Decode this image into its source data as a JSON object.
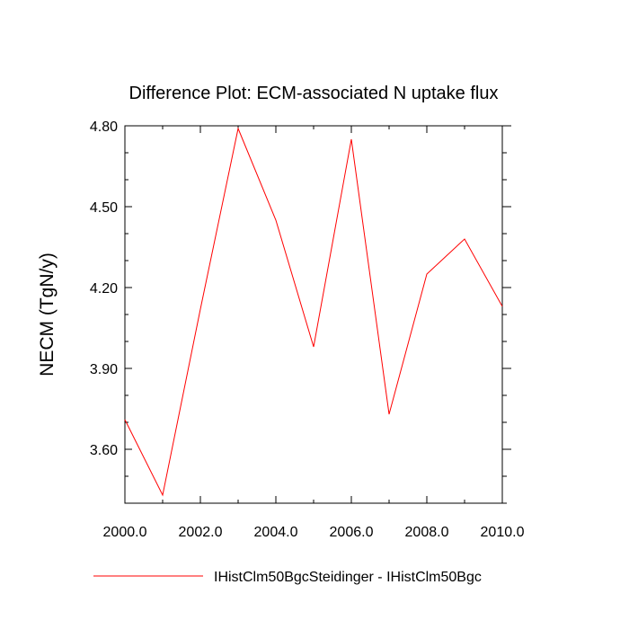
{
  "chart_data": {
    "type": "line",
    "title": "Difference Plot: ECM-associated N uptake flux",
    "xlabel": "",
    "ylabel": "NECM  (TgN/y)",
    "xlim": [
      2000,
      2010
    ],
    "ylim": [
      3.4,
      4.8
    ],
    "x_ticks": [
      2000,
      2002,
      2004,
      2006,
      2008,
      2010
    ],
    "x_tick_labels": [
      "2000.0",
      "2002.0",
      "2004.0",
      "2006.0",
      "2008.0",
      "2010.0"
    ],
    "y_ticks": [
      3.6,
      3.9,
      4.2,
      4.5,
      4.8
    ],
    "y_tick_labels": [
      "3.60",
      "3.90",
      "4.20",
      "4.50",
      "4.80"
    ],
    "grid": false,
    "legend_position": "bottom",
    "series": [
      {
        "name": "IHistClm50BgcSteidinger - IHistClm50Bgc",
        "color": "#ff0000",
        "x": [
          2000,
          2001,
          2002,
          2003,
          2004,
          2005,
          2006,
          2007,
          2008,
          2009,
          2010
        ],
        "y": [
          3.71,
          3.43,
          4.12,
          4.79,
          4.45,
          3.98,
          4.75,
          3.73,
          4.25,
          4.38,
          4.13
        ]
      }
    ]
  }
}
